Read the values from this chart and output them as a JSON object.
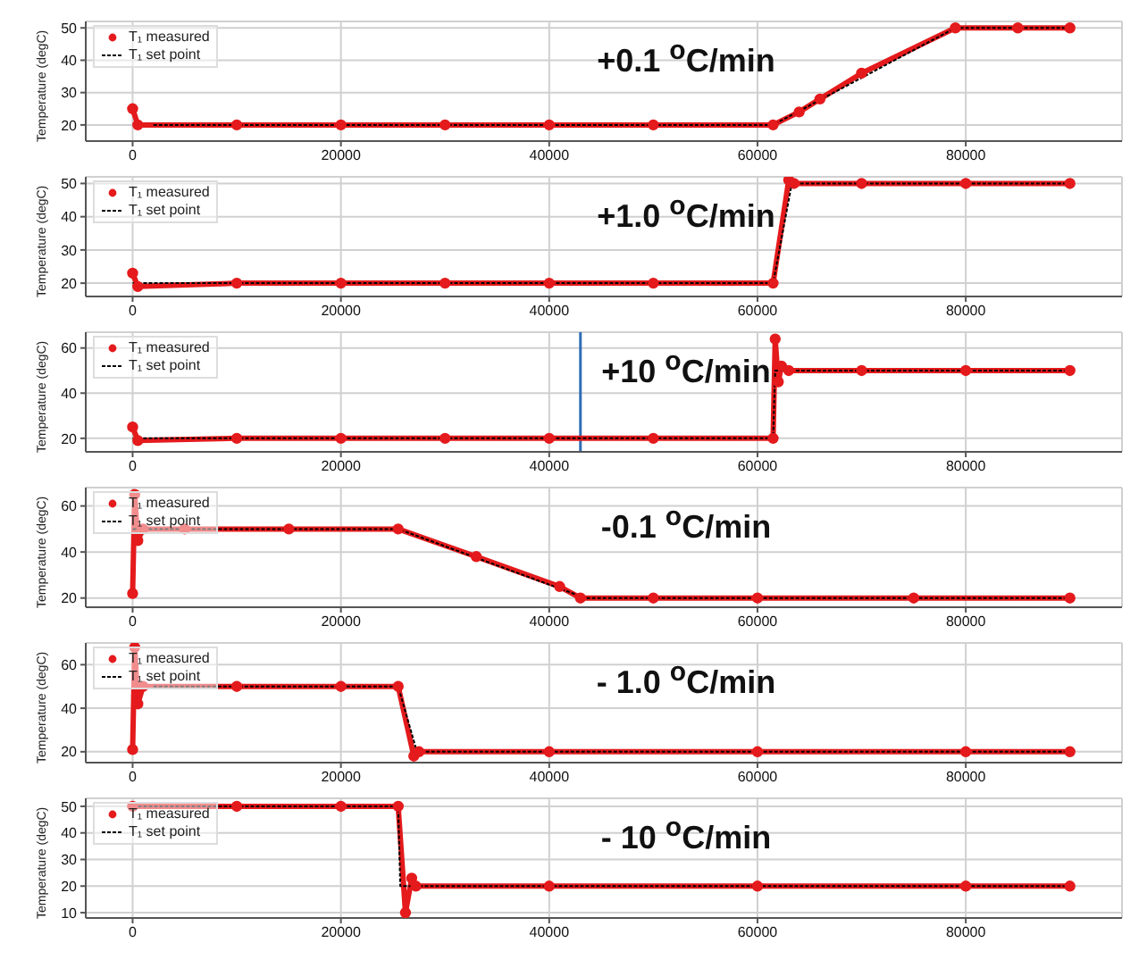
{
  "chart_data": [
    {
      "type": "line",
      "title": "+0.1 $^{o}$C/min",
      "ylabel": "Temperature (degC)",
      "xlim": [
        -4500,
        95000
      ],
      "xticks": [
        0,
        20000,
        40000,
        60000,
        80000
      ],
      "ylim": [
        15,
        52
      ],
      "yticks": [
        20,
        30,
        40,
        50
      ],
      "grid": true,
      "legend": "top left",
      "series": [
        {
          "name": "T₁ measured",
          "color": "#e41a1c",
          "marker": "circle",
          "line_style": "solid",
          "x": [
            0,
            500,
            10000,
            20000,
            30000,
            40000,
            50000,
            61500,
            64000,
            66000,
            70000,
            79000,
            85000,
            90000
          ],
          "values": [
            25,
            20,
            20,
            20,
            20,
            20,
            20,
            20,
            24,
            28,
            36,
            50,
            50,
            50
          ]
        },
        {
          "name": "T₁ set point",
          "color": "#000000",
          "marker": "none",
          "line_style": "dashed",
          "x": [
            2000,
            61500,
            79000,
            90000
          ],
          "values": [
            20,
            20,
            50,
            50
          ]
        }
      ]
    },
    {
      "type": "line",
      "title": "+1.0 $^{o}$C/min",
      "ylabel": "Temperature (degC)",
      "xlim": [
        -4500,
        95000
      ],
      "xticks": [
        0,
        20000,
        40000,
        60000,
        80000
      ],
      "ylim": [
        16,
        52
      ],
      "yticks": [
        20,
        30,
        40,
        50
      ],
      "grid": true,
      "legend": "top left",
      "series": [
        {
          "name": "T₁ measured",
          "color": "#e41a1c",
          "marker": "circle",
          "line_style": "solid",
          "x": [
            0,
            500,
            10000,
            20000,
            30000,
            40000,
            50000,
            61500,
            63000,
            63500,
            70000,
            80000,
            90000
          ],
          "values": [
            23,
            19,
            20,
            20,
            20,
            20,
            20,
            20,
            51,
            50,
            50,
            50,
            50
          ]
        },
        {
          "name": "T₁ set point",
          "color": "#000000",
          "marker": "none",
          "line_style": "dashed",
          "x": [
            0,
            61500,
            63300,
            90000
          ],
          "values": [
            20,
            20,
            50,
            50
          ]
        }
      ]
    },
    {
      "type": "line",
      "title": "+10 $^{o}$C/min",
      "ylabel": "Temperature (degC)",
      "xlim": [
        -4500,
        95000
      ],
      "xticks": [
        0,
        20000,
        40000,
        60000,
        80000
      ],
      "ylim": [
        14,
        67
      ],
      "yticks": [
        20,
        40,
        60
      ],
      "grid": true,
      "legend": "top left",
      "ref_lines": [
        {
          "axis": "x",
          "value": 43000,
          "color": "#2f6db5"
        }
      ],
      "series": [
        {
          "name": "T₁ measured",
          "color": "#e41a1c",
          "marker": "circle",
          "line_style": "solid",
          "x": [
            0,
            500,
            10000,
            20000,
            30000,
            40000,
            50000,
            61500,
            61700,
            62000,
            62300,
            63000,
            70000,
            80000,
            90000
          ],
          "values": [
            25,
            19,
            20,
            20,
            20,
            20,
            20,
            20,
            64,
            45,
            52,
            50,
            50,
            50,
            50
          ]
        },
        {
          "name": "T₁ set point",
          "color": "#000000",
          "marker": "none",
          "line_style": "dashed",
          "x": [
            0,
            61500,
            61700,
            90000
          ],
          "values": [
            20,
            20,
            50,
            50
          ]
        }
      ]
    },
    {
      "type": "line",
      "title": "-0.1 $^{o}$C/min",
      "ylabel": "Temperature (degC)",
      "xlim": [
        -4500,
        95000
      ],
      "xticks": [
        0,
        20000,
        40000,
        60000,
        80000
      ],
      "ylim": [
        16,
        68
      ],
      "yticks": [
        20,
        40,
        60
      ],
      "grid": true,
      "legend": "top left",
      "series": [
        {
          "name": "T₁ measured",
          "color": "#e41a1c",
          "marker": "circle",
          "line_style": "solid",
          "x": [
            0,
            200,
            500,
            1000,
            5000,
            15000,
            25500,
            33000,
            41000,
            43000,
            50000,
            60000,
            75000,
            90000
          ],
          "values": [
            22,
            65,
            45,
            50,
            50,
            50,
            50,
            38,
            25,
            20,
            20,
            20,
            20,
            20
          ]
        },
        {
          "name": "T₁ set point",
          "color": "#000000",
          "marker": "none",
          "line_style": "dashed",
          "x": [
            0,
            25500,
            43500,
            90000
          ],
          "values": [
            50,
            50,
            20,
            20
          ]
        }
      ]
    },
    {
      "type": "line",
      "title": "- 1.0 $^{o}$C/min",
      "ylabel": "Temperature (degC)",
      "xlim": [
        -4500,
        95000
      ],
      "xticks": [
        0,
        20000,
        40000,
        60000,
        80000
      ],
      "ylim": [
        15,
        70
      ],
      "yticks": [
        20,
        40,
        60
      ],
      "grid": true,
      "legend": "top left",
      "series": [
        {
          "name": "T₁ measured",
          "color": "#e41a1c",
          "marker": "circle",
          "line_style": "solid",
          "x": [
            0,
            200,
            500,
            1000,
            10000,
            20000,
            25500,
            27000,
            27500,
            40000,
            60000,
            80000,
            90000
          ],
          "values": [
            21,
            68,
            42,
            50,
            50,
            50,
            50,
            18,
            20,
            20,
            20,
            20,
            20
          ]
        },
        {
          "name": "T₁ set point",
          "color": "#000000",
          "marker": "none",
          "line_style": "dashed",
          "x": [
            2000,
            25500,
            27300,
            90000
          ],
          "values": [
            50,
            50,
            20,
            20
          ]
        }
      ]
    },
    {
      "type": "line",
      "title": "- 10 $^{o}$C/min",
      "ylabel": "Temperature (degC)",
      "xlim": [
        -4500,
        95000
      ],
      "xticks": [
        0,
        20000,
        40000,
        60000,
        80000
      ],
      "ylim": [
        8,
        53
      ],
      "yticks": [
        10,
        20,
        30,
        40,
        50
      ],
      "grid": true,
      "legend": "top left",
      "series": [
        {
          "name": "T₁ measured",
          "color": "#e41a1c",
          "marker": "circle",
          "line_style": "solid",
          "x": [
            0,
            10000,
            20000,
            25500,
            26200,
            26800,
            27200,
            40000,
            60000,
            80000,
            90000
          ],
          "values": [
            50,
            50,
            50,
            50,
            10,
            23,
            20,
            20,
            20,
            20,
            20
          ]
        },
        {
          "name": "T₁ set point",
          "color": "#000000",
          "marker": "none",
          "line_style": "dashed",
          "x": [
            0,
            25500,
            25700,
            90000
          ],
          "values": [
            50,
            50,
            20,
            20
          ]
        }
      ]
    }
  ]
}
